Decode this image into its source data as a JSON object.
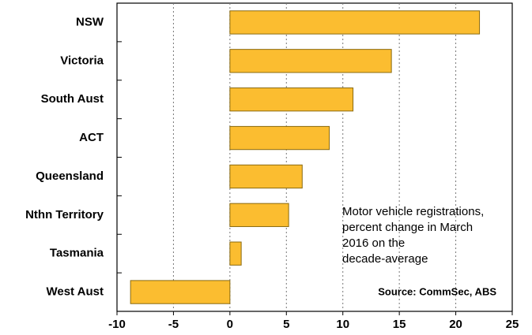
{
  "chart_data": {
    "type": "bar",
    "orientation": "horizontal",
    "categories": [
      "NSW",
      "Victoria",
      "South Aust",
      "ACT",
      "Queensland",
      "Nthn Territory",
      "Tasmania",
      "West Aust"
    ],
    "values": [
      22.1,
      14.3,
      10.9,
      8.8,
      6.4,
      5.2,
      1.0,
      -8.8
    ],
    "color": "#fbbd30",
    "xlim": [
      -10,
      25
    ],
    "xticks": [
      -10,
      -5,
      0,
      5,
      10,
      15,
      20,
      25
    ],
    "grid": true,
    "annotation": [
      "Motor vehicle registrations,",
      "percent change in March",
      "2016 on the",
      "decade-average"
    ],
    "source": "Source: CommSec, ABS"
  }
}
